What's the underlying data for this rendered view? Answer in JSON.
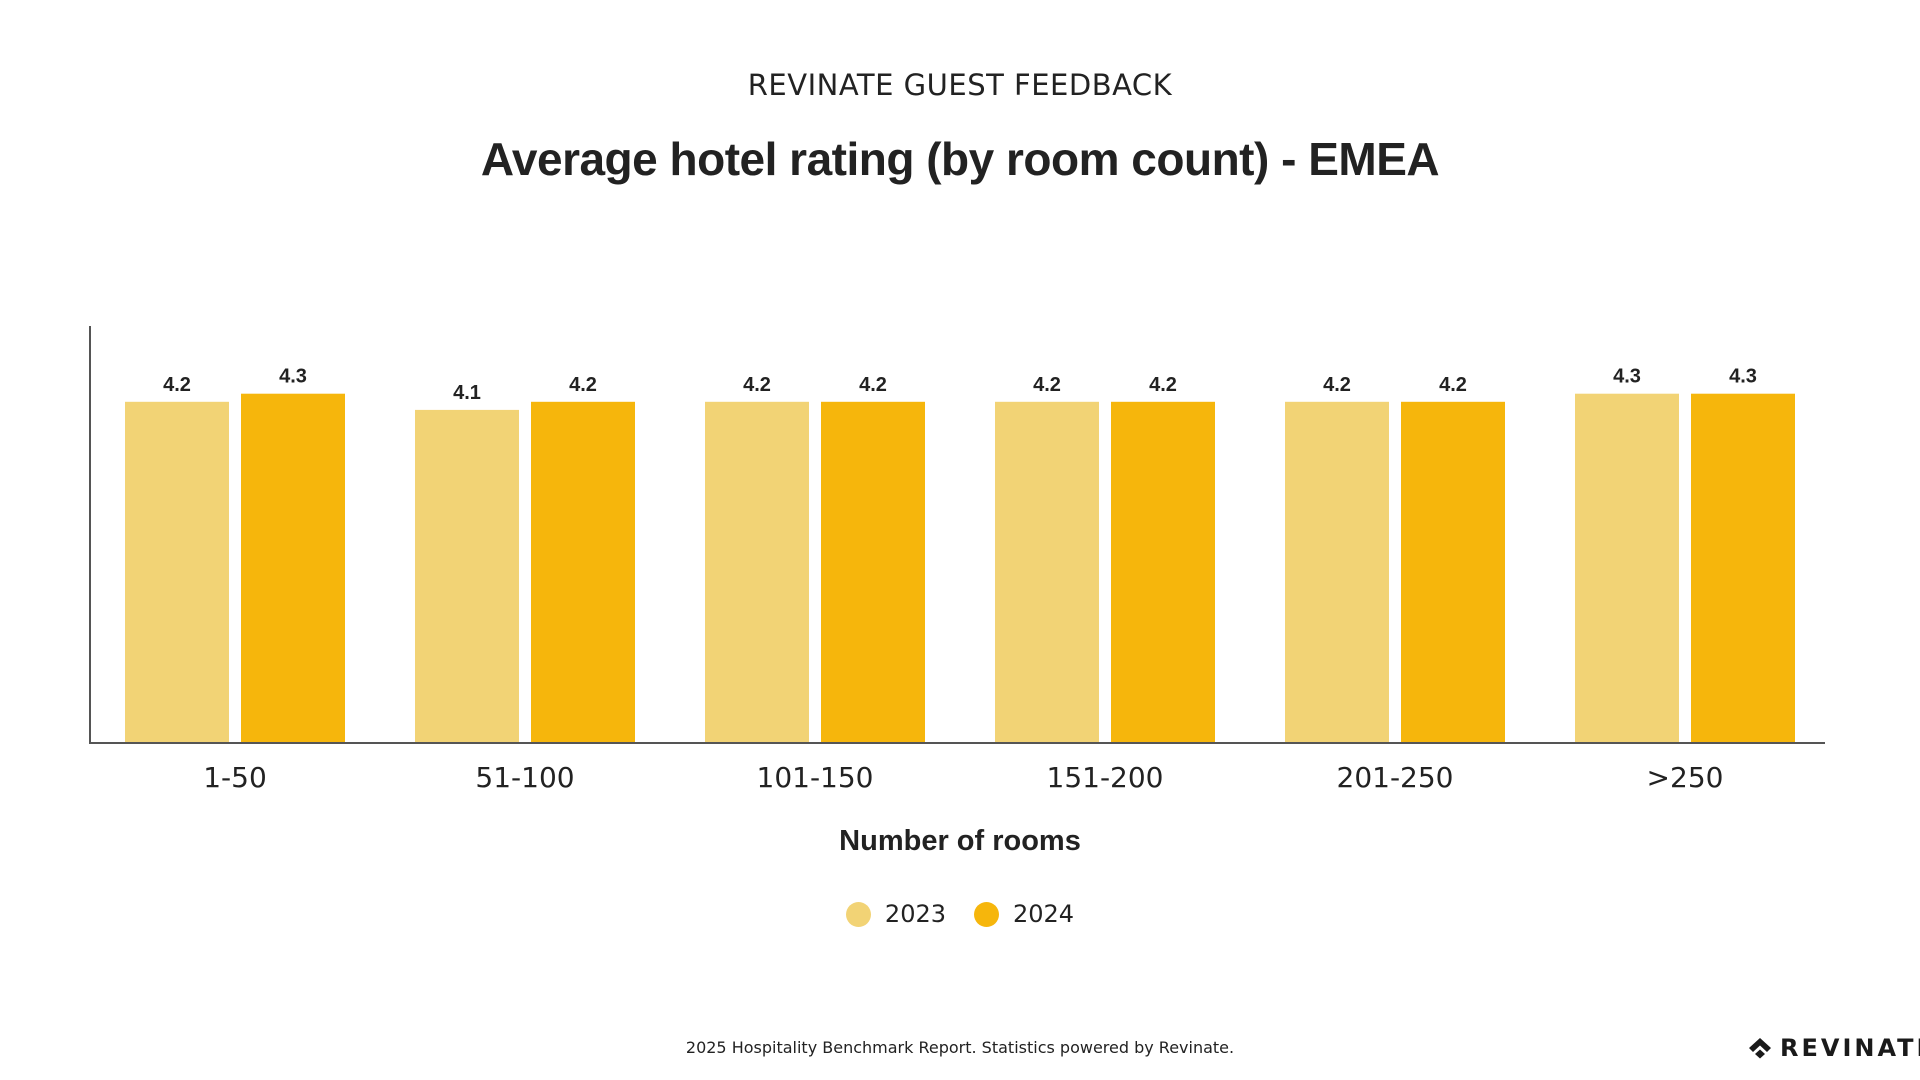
{
  "header": {
    "eyebrow": "REVINATE GUEST FEEDBACK",
    "title": "Average hotel rating (by room count) - EMEA"
  },
  "chart_data": {
    "type": "bar",
    "categories": [
      "1-50",
      "51-100",
      "101-150",
      "151-200",
      "201-250",
      ">250"
    ],
    "series": [
      {
        "name": "2023",
        "color": "#F2D375",
        "values": [
          4.2,
          4.1,
          4.2,
          4.2,
          4.2,
          4.3
        ]
      },
      {
        "name": "2024",
        "color": "#F6B60C",
        "values": [
          4.3,
          4.2,
          4.2,
          4.2,
          4.2,
          4.3
        ]
      }
    ],
    "data_labels": true,
    "xlabel": "Number of rooms",
    "ylabel": "",
    "grid": false,
    "legend": "bottom-center"
  },
  "footer": {
    "text": "2025 Hospitality Benchmark Report. Statistics powered by Revinate.",
    "brand_name": "REVINATE",
    "brand_icon": "revinate-logo-icon"
  }
}
